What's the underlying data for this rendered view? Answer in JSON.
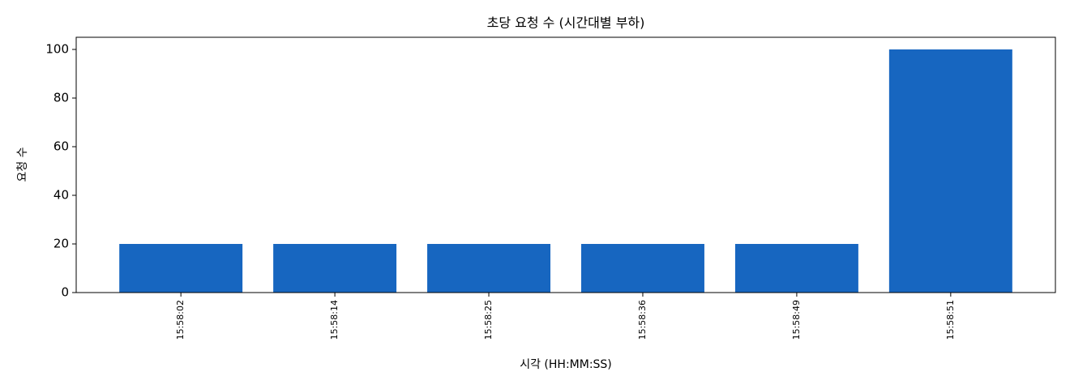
{
  "chart_data": {
    "type": "bar",
    "title": "초당 요청 수 (시간대별 부하)",
    "x_label": "시각 (HH:MM:SS)",
    "y_label": "요청 수",
    "categories": [
      "15:58:02",
      "15:58:14",
      "15:58:25",
      "15:58:36",
      "15:58:49",
      "15:58:51"
    ],
    "values": [
      20,
      20,
      20,
      20,
      20,
      100
    ],
    "color": "#1766c0",
    "ylim": [
      0,
      105
    ],
    "yticks": [
      0,
      20,
      40,
      60,
      80,
      100
    ],
    "grid": false
  }
}
